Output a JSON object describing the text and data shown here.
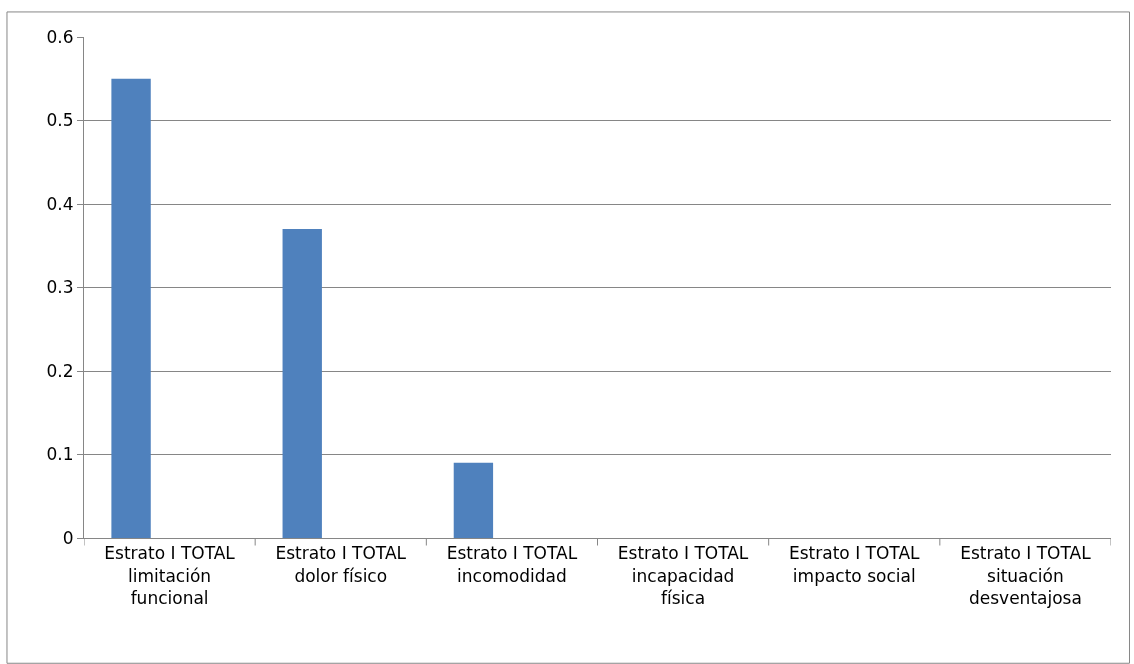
{
  "chart_data": {
    "type": "bar",
    "categories": [
      "Estrato I TOTAL\nlimitación\nfuncional",
      "Estrato I TOTAL\ndolor físico",
      "Estrato I TOTAL\nincomodidad",
      "Estrato I TOTAL\nincapacidad\nfísica",
      "Estrato I TOTAL\nimpacto social",
      "Estrato I TOTAL\nsituación\ndesventajosa"
    ],
    "values": [
      0.55,
      0.37,
      0.09,
      0,
      0,
      0
    ],
    "color": "#4f81bd",
    "ylim": [
      0,
      0.6
    ],
    "yticks": [
      0,
      0.1,
      0.2,
      0.3,
      0.4,
      0.5,
      0.6
    ],
    "grid": "y"
  }
}
